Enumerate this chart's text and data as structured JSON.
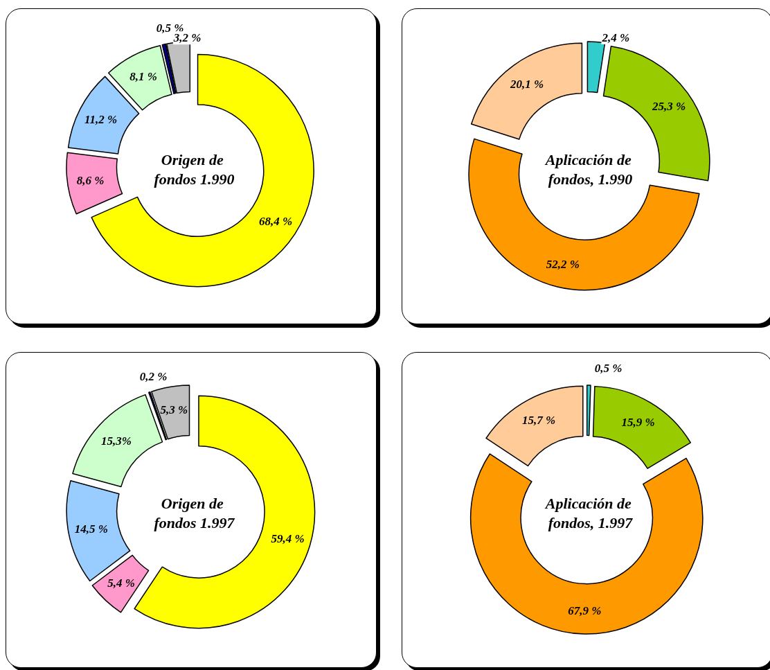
{
  "chart_data": [
    {
      "type": "donut",
      "title": "Origen de fondos 1.990",
      "categories": [
        null,
        null,
        null,
        null,
        null,
        null
      ],
      "values": [
        68.4,
        8.6,
        11.2,
        8.1,
        0.5,
        3.2
      ],
      "colors": [
        "#ffff00",
        "#ff99cc",
        "#99ccff",
        "#ccffcc",
        "#000080",
        "#c0c0c0"
      ],
      "value_labels": [
        "68,4 %",
        "8,6 %",
        "11,2 %",
        "8,1 %",
        "0,5 %",
        "3,2 %"
      ]
    },
    {
      "type": "donut",
      "title": "Aplicación de fondos, 1.990",
      "categories": [
        null,
        null,
        null,
        null
      ],
      "values": [
        2.4,
        25.3,
        52.2,
        20.1
      ],
      "colors": [
        "#33cccc",
        "#99cc00",
        "#ff9900",
        "#ffcc99"
      ],
      "value_labels": [
        "2,4 %",
        "25,3 %",
        "52,2 %",
        "20,1 %"
      ]
    },
    {
      "type": "donut",
      "title": "Origen de fondos 1.997",
      "categories": [
        null,
        null,
        null,
        null,
        null,
        null
      ],
      "values": [
        59.4,
        5.4,
        14.5,
        15.3,
        0.2,
        5.3
      ],
      "colors": [
        "#ffff00",
        "#ff99cc",
        "#99ccff",
        "#ccffcc",
        "#000080",
        "#c0c0c0"
      ],
      "value_labels": [
        "59,4 %",
        "5,4 %",
        "14,5 %",
        "15,3%",
        "0,2 %",
        "5,3 %"
      ]
    },
    {
      "type": "donut",
      "title": "Aplicación de fondos, 1.997",
      "categories": [
        null,
        null,
        null,
        null
      ],
      "values": [
        0.5,
        15.9,
        67.9,
        15.7
      ],
      "colors": [
        "#33cccc",
        "#99cc00",
        "#ff9900",
        "#ffcc99"
      ],
      "value_labels": [
        "0,5 %",
        "15,9 %",
        "67,9 %",
        "15,7 %"
      ]
    }
  ]
}
